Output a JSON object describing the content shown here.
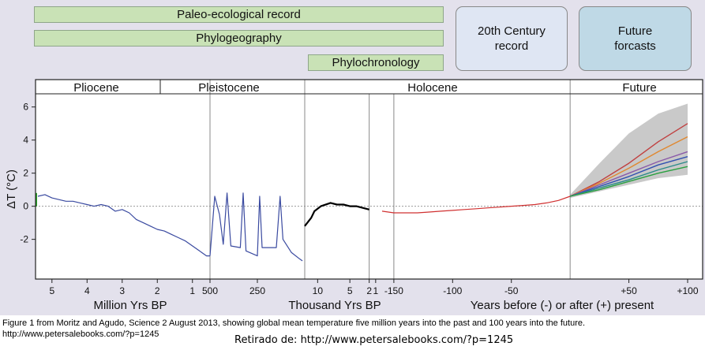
{
  "records": {
    "paleo": "Paleo-ecological record",
    "phylogeo": "Phylogeography",
    "phylochrono": "Phylochronology"
  },
  "boxes": {
    "century": "20th Century\nrecord",
    "future": "Future\nforcasts"
  },
  "colors": {
    "panel_bg": "#e3e1ec",
    "record_green": "#c9e2b6",
    "box_century": "#dfe6f3",
    "box_future": "#bfd9e6",
    "paleo_line": "#3a4aa0",
    "holocene_mean": "#000000",
    "recent_line": "#d03030",
    "green_start": "#2aa02a",
    "band": "#bfbfbf"
  },
  "chart_data": {
    "type": "line",
    "ylabel": "ΔT (°C)",
    "ylim": [
      -4.4,
      6.7
    ],
    "yticks": [
      -2,
      0,
      2,
      4,
      6
    ],
    "grid": false,
    "epochs": [
      "Pliocene",
      "Pleistocene",
      "Holocene",
      "Future"
    ],
    "segments": [
      {
        "id": "million",
        "xlabel": "Million Yrs BP",
        "ticks": [
          "5",
          "4",
          "3",
          "2",
          "1"
        ],
        "range": [
          5.4,
          0.5
        ]
      },
      {
        "id": "kyr500",
        "xlabel": "",
        "ticks": [
          "500",
          "250"
        ],
        "range": [
          500,
          0
        ]
      },
      {
        "id": "kyr20",
        "xlabel": "Thousand Yrs BP",
        "ticks": [
          "10",
          "5",
          "2",
          "1"
        ],
        "range": [
          12,
          0
        ]
      },
      {
        "id": "years",
        "xlabel": "Years before (-) or after (+) present",
        "ticks": [
          "-150",
          "-100",
          "-50",
          "+50",
          "+100"
        ],
        "range": [
          -160,
          100
        ]
      }
    ],
    "series": [
      {
        "id": "pliocene-pleistocene",
        "segment": "million",
        "color": "#3a4aa0",
        "points": [
          [
            5.4,
            0.6
          ],
          [
            5.2,
            0.7
          ],
          [
            5.0,
            0.5
          ],
          [
            4.8,
            0.4
          ],
          [
            4.6,
            0.3
          ],
          [
            4.4,
            0.3
          ],
          [
            4.2,
            0.2
          ],
          [
            4.0,
            0.1
          ],
          [
            3.8,
            0.0
          ],
          [
            3.6,
            0.1
          ],
          [
            3.4,
            0.0
          ],
          [
            3.2,
            -0.3
          ],
          [
            3.0,
            -0.2
          ],
          [
            2.8,
            -0.4
          ],
          [
            2.6,
            -0.8
          ],
          [
            2.4,
            -1.0
          ],
          [
            2.2,
            -1.2
          ],
          [
            2.0,
            -1.4
          ],
          [
            1.8,
            -1.5
          ],
          [
            1.6,
            -1.7
          ],
          [
            1.4,
            -1.9
          ],
          [
            1.2,
            -2.1
          ],
          [
            1.0,
            -2.4
          ],
          [
            0.8,
            -2.7
          ],
          [
            0.6,
            -3.0
          ],
          [
            0.5,
            -3.0
          ]
        ]
      },
      {
        "id": "late-pleistocene",
        "segment": "kyr500",
        "color": "#3a4aa0",
        "points": [
          [
            500,
            -3.0
          ],
          [
            475,
            0.6
          ],
          [
            450,
            -0.5
          ],
          [
            430,
            -2.3
          ],
          [
            410,
            0.8
          ],
          [
            390,
            -2.4
          ],
          [
            340,
            -2.5
          ],
          [
            325,
            0.8
          ],
          [
            310,
            -2.7
          ],
          [
            250,
            -3.0
          ],
          [
            238,
            0.6
          ],
          [
            225,
            -2.5
          ],
          [
            150,
            -2.5
          ],
          [
            130,
            0.6
          ],
          [
            115,
            -2.0
          ],
          [
            70,
            -2.8
          ],
          [
            25,
            -3.2
          ],
          [
            12,
            -3.3
          ]
        ]
      },
      {
        "id": "holocene-mean",
        "segment": "kyr20",
        "color": "#000000",
        "points": [
          [
            12,
            -1.2
          ],
          [
            11,
            -0.7
          ],
          [
            10.5,
            -0.3
          ],
          [
            9.5,
            0.0
          ],
          [
            8,
            0.2
          ],
          [
            7,
            0.1
          ],
          [
            6,
            0.1
          ],
          [
            5,
            0.0
          ],
          [
            4,
            0.0
          ],
          [
            3,
            -0.1
          ],
          [
            2,
            -0.2
          ]
        ]
      },
      {
        "id": "recent-record",
        "segment": "years",
        "color": "#d03030",
        "points": [
          [
            -160,
            -0.3
          ],
          [
            -150,
            -0.4
          ],
          [
            -140,
            -0.4
          ],
          [
            -130,
            -0.4
          ],
          [
            -120,
            -0.35
          ],
          [
            -110,
            -0.3
          ],
          [
            -100,
            -0.25
          ],
          [
            -90,
            -0.2
          ],
          [
            -80,
            -0.15
          ],
          [
            -70,
            -0.1
          ],
          [
            -60,
            -0.05
          ],
          [
            -50,
            0.0
          ],
          [
            -40,
            0.05
          ],
          [
            -30,
            0.1
          ],
          [
            -20,
            0.2
          ],
          [
            -10,
            0.35
          ],
          [
            0,
            0.6
          ]
        ]
      },
      {
        "id": "projection-1",
        "segment": "years",
        "color": "#c04040",
        "points": [
          [
            0,
            0.6
          ],
          [
            25,
            1.5
          ],
          [
            50,
            2.6
          ],
          [
            75,
            3.9
          ],
          [
            100,
            5.0
          ]
        ]
      },
      {
        "id": "projection-2",
        "segment": "years",
        "color": "#e08830",
        "points": [
          [
            0,
            0.6
          ],
          [
            25,
            1.4
          ],
          [
            50,
            2.3
          ],
          [
            75,
            3.3
          ],
          [
            100,
            4.2
          ]
        ]
      },
      {
        "id": "projection-3",
        "segment": "years",
        "color": "#8a5aa8",
        "points": [
          [
            0,
            0.6
          ],
          [
            25,
            1.3
          ],
          [
            50,
            2.0
          ],
          [
            75,
            2.7
          ],
          [
            100,
            3.3
          ]
        ]
      },
      {
        "id": "projection-4",
        "segment": "years",
        "color": "#3050b0",
        "points": [
          [
            0,
            0.6
          ],
          [
            25,
            1.2
          ],
          [
            50,
            1.8
          ],
          [
            75,
            2.5
          ],
          [
            100,
            3.0
          ]
        ]
      },
      {
        "id": "projection-5",
        "segment": "years",
        "color": "#2a8a8a",
        "points": [
          [
            0,
            0.6
          ],
          [
            25,
            1.1
          ],
          [
            50,
            1.6
          ],
          [
            75,
            2.2
          ],
          [
            100,
            2.7
          ]
        ]
      },
      {
        "id": "projection-6",
        "segment": "years",
        "color": "#2aa040",
        "points": [
          [
            0,
            0.6
          ],
          [
            25,
            1.0
          ],
          [
            50,
            1.5
          ],
          [
            75,
            2.0
          ],
          [
            100,
            2.4
          ]
        ]
      }
    ],
    "band": {
      "segment": "years",
      "upper": [
        [
          0,
          0.7
        ],
        [
          25,
          2.6
        ],
        [
          50,
          4.4
        ],
        [
          75,
          5.6
        ],
        [
          100,
          6.2
        ]
      ],
      "lower": [
        [
          0,
          0.5
        ],
        [
          25,
          0.9
        ],
        [
          50,
          1.3
        ],
        [
          75,
          1.7
        ],
        [
          100,
          1.9
        ]
      ]
    }
  },
  "caption": "Figure 1 from Moritz and Agudo, Science 2 August 2013, showing global mean temperature five million years into the past and 100 years into the future. http://www.petersalebooks.com/?p=1245",
  "credit": "Retirado de: http://www.petersalebooks.com/?p=1245"
}
